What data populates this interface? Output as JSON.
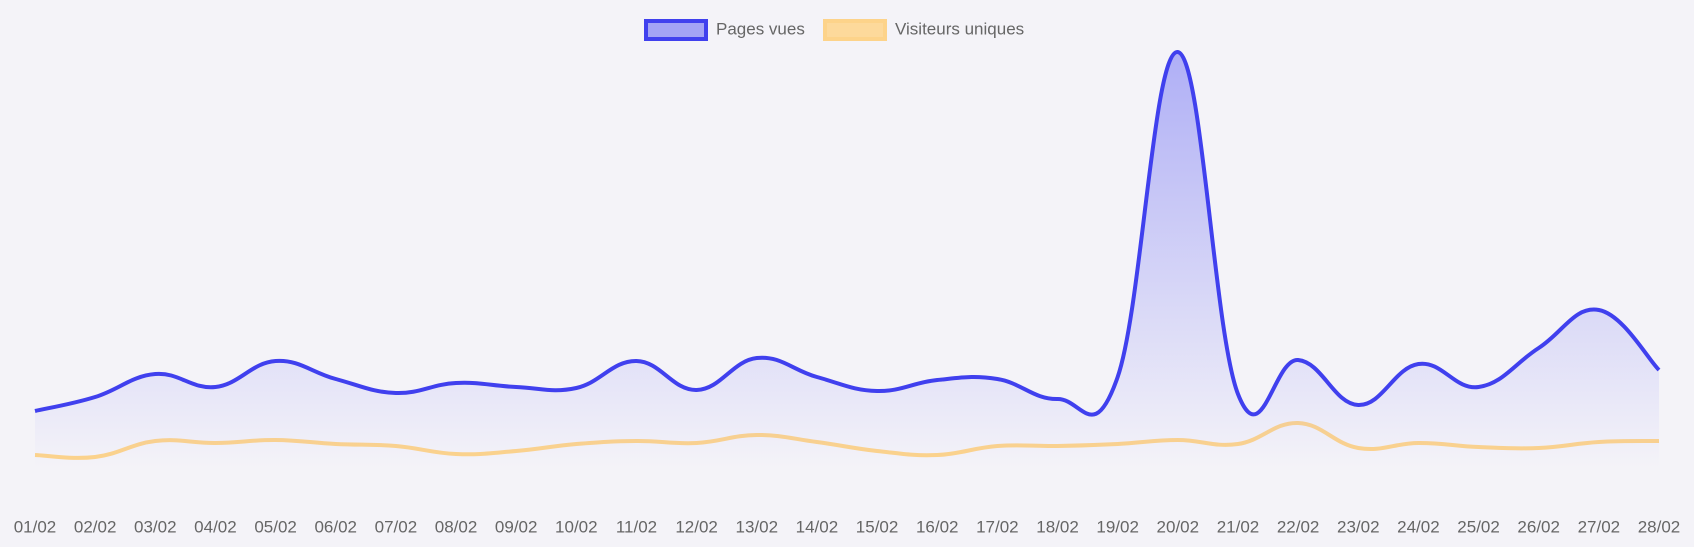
{
  "chart_data": {
    "type": "line",
    "categories": [
      "01/02",
      "02/02",
      "03/02",
      "04/02",
      "05/02",
      "06/02",
      "07/02",
      "08/02",
      "09/02",
      "10/02",
      "11/02",
      "12/02",
      "13/02",
      "14/02",
      "15/02",
      "16/02",
      "17/02",
      "18/02",
      "19/02",
      "20/02",
      "21/02",
      "22/02",
      "23/02",
      "24/02",
      "25/02",
      "26/02",
      "27/02",
      "28/02"
    ],
    "series": [
      {
        "name": "Pages vues",
        "color": "#4040ee",
        "fill": "#a3a3f5",
        "values": [
          57,
          71,
          94,
          81,
          107,
          89,
          75,
          85,
          81,
          80,
          107,
          78,
          110,
          91,
          77,
          88,
          89,
          69,
          91,
          416,
          74,
          108,
          63,
          104,
          81,
          120,
          158,
          98
        ]
      },
      {
        "name": "Visiteurs uniques",
        "color": "#fdd38a",
        "fill": "#fdd99b",
        "values": [
          13,
          11,
          27,
          25,
          28,
          24,
          22,
          14,
          17,
          24,
          27,
          25,
          33,
          26,
          17,
          13,
          22,
          22,
          24,
          28,
          24,
          45,
          20,
          25,
          21,
          20,
          26,
          27
        ]
      }
    ],
    "ylim": [
      0,
      430
    ],
    "legend": "top"
  }
}
